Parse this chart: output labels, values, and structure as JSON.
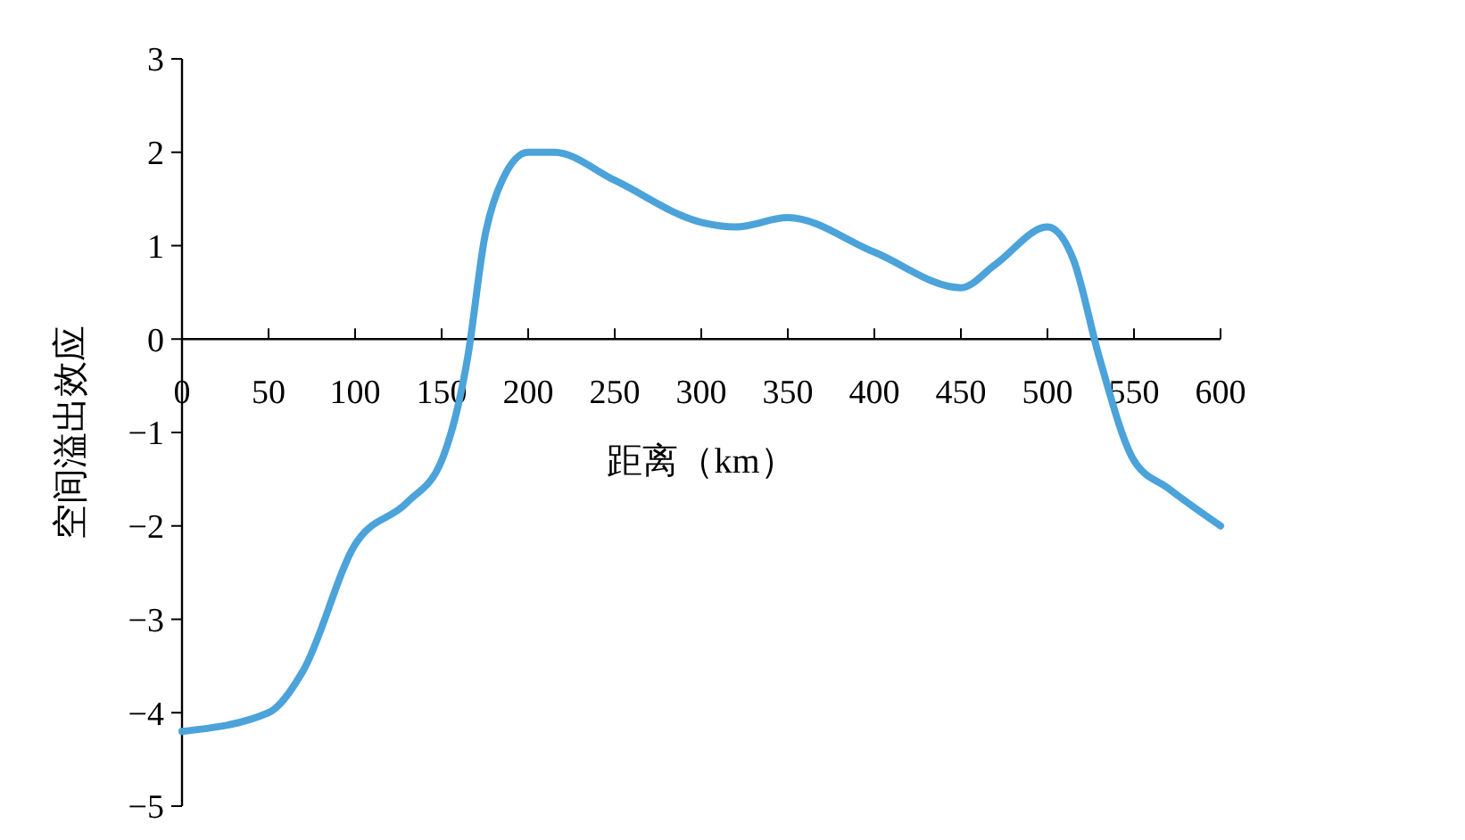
{
  "chart_data": {
    "type": "line",
    "xlabel": "距离（km）",
    "ylabel": "空间溢出效应",
    "xlim": [
      0,
      600
    ],
    "xticks": [
      0,
      50,
      100,
      150,
      200,
      250,
      300,
      350,
      400,
      450,
      500,
      550,
      600
    ],
    "ylim": [
      -5,
      3
    ],
    "yticks": [
      {
        "value": -5,
        "label": "−5"
      },
      {
        "value": -4,
        "label": "−4"
      },
      {
        "value": -3,
        "label": "−3"
      },
      {
        "value": -2,
        "label": "−2"
      },
      {
        "value": -1,
        "label": "−1"
      },
      0,
      1,
      2,
      3
    ],
    "grid": false,
    "marker": "none",
    "line_style": "solid",
    "series": [
      {
        "color": "#4ba3da",
        "x": [
          0,
          50,
          70,
          100,
          130,
          150,
          165,
          175,
          185,
          200,
          215,
          250,
          300,
          320,
          350,
          400,
          450,
          470,
          500,
          515,
          530,
          550,
          570,
          600
        ],
        "values": [
          -4.2,
          -4.0,
          -3.55,
          -2.2,
          -1.75,
          -1.3,
          -0.2,
          1.1,
          1.7,
          2.0,
          2.0,
          1.7,
          1.25,
          1.2,
          1.3,
          0.93,
          0.55,
          0.8,
          1.2,
          0.85,
          -0.2,
          -1.3,
          -1.6,
          -2.0
        ]
      }
    ]
  }
}
